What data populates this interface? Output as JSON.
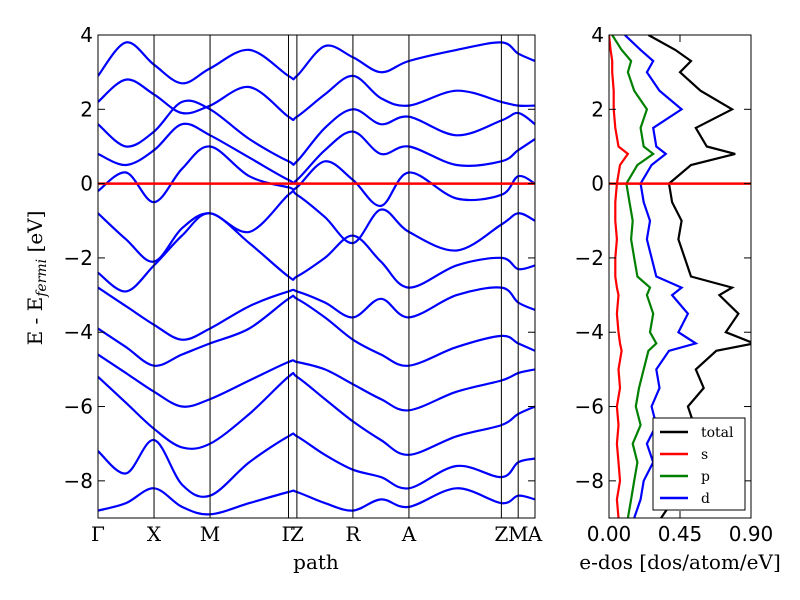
{
  "chart_data": [
    {
      "type": "line",
      "name": "band-structure",
      "xlabel": "path",
      "ylabel_prefix": "E - E",
      "ylabel_sub": "fermi",
      "ylabel_suffix": " [eV]",
      "ylim": [
        -9,
        4
      ],
      "yticks": [
        4,
        2,
        0,
        -2,
        -4,
        -6,
        -8
      ],
      "ytick_labels": [
        "4",
        "2",
        "0",
        "−2",
        "−4",
        "−6",
        "−8"
      ],
      "kpoints": [
        {
          "label": "Γ",
          "x": 0
        },
        {
          "label": "X",
          "x": 1.0
        },
        {
          "label": "M",
          "x": 2.0
        },
        {
          "label": "Γ",
          "x": 3.4
        },
        {
          "label": "Z",
          "x": 3.55
        },
        {
          "label": "R",
          "x": 4.55
        },
        {
          "label": "A",
          "x": 5.55
        },
        {
          "label": "Z",
          "x": 7.2
        },
        {
          "label": "M",
          "x": 7.5
        },
        {
          "label": "A",
          "x": 7.8
        }
      ],
      "xlim": [
        0,
        7.8
      ],
      "fermi_level": 0,
      "band_color": "#0000ff",
      "fermi_color": "#ff0000",
      "series": [
        {
          "name": "band-1",
          "x": [
            0,
            0.5,
            1.0,
            1.5,
            2.0,
            2.7,
            3.4,
            3.55,
            4.05,
            4.55,
            5.05,
            5.55,
            6.4,
            7.2,
            7.5,
            7.8
          ],
          "y": [
            -8.8,
            -8.6,
            -8.2,
            -8.7,
            -8.9,
            -8.6,
            -8.3,
            -8.3,
            -8.6,
            -8.8,
            -8.5,
            -8.7,
            -8.2,
            -8.6,
            -8.4,
            -8.5
          ]
        },
        {
          "name": "band-2",
          "x": [
            0,
            0.5,
            1.0,
            1.5,
            2.0,
            2.7,
            3.4,
            3.55,
            4.05,
            4.55,
            5.05,
            5.55,
            6.4,
            7.2,
            7.5,
            7.8
          ],
          "y": [
            -7.2,
            -7.8,
            -6.9,
            -8.1,
            -8.4,
            -7.5,
            -6.8,
            -6.8,
            -7.3,
            -7.7,
            -7.9,
            -8.2,
            -7.6,
            -7.9,
            -7.5,
            -7.4
          ]
        },
        {
          "name": "band-3",
          "x": [
            0,
            0.5,
            1.0,
            1.5,
            2.0,
            2.7,
            3.4,
            3.55,
            4.05,
            4.55,
            5.05,
            5.55,
            6.4,
            7.2,
            7.5,
            7.8
          ],
          "y": [
            -5.2,
            -5.9,
            -6.6,
            -7.1,
            -7.0,
            -6.2,
            -5.2,
            -5.2,
            -5.8,
            -6.4,
            -6.9,
            -7.3,
            -6.8,
            -6.5,
            -6.2,
            -6.0
          ]
        },
        {
          "name": "band-4",
          "x": [
            0,
            0.5,
            1.0,
            1.5,
            2.0,
            2.7,
            3.4,
            3.55,
            4.05,
            4.55,
            5.05,
            5.55,
            6.4,
            7.2,
            7.5,
            7.8
          ],
          "y": [
            -4.6,
            -5.1,
            -5.6,
            -6.0,
            -5.8,
            -5.3,
            -4.8,
            -4.8,
            -5.0,
            -5.4,
            -5.8,
            -6.1,
            -5.6,
            -5.3,
            -5.1,
            -5.0
          ]
        },
        {
          "name": "band-5",
          "x": [
            0,
            0.5,
            1.0,
            1.5,
            2.0,
            2.7,
            3.4,
            3.55,
            4.05,
            4.55,
            5.05,
            5.55,
            6.4,
            7.2,
            7.5,
            7.8
          ],
          "y": [
            -3.9,
            -4.4,
            -4.9,
            -4.6,
            -4.3,
            -3.9,
            -3.1,
            -3.1,
            -3.6,
            -4.2,
            -4.6,
            -4.9,
            -4.4,
            -4.1,
            -4.3,
            -4.5
          ]
        },
        {
          "name": "band-6",
          "x": [
            0,
            0.5,
            1.0,
            1.5,
            2.0,
            2.7,
            3.4,
            3.55,
            4.05,
            4.55,
            5.05,
            5.55,
            6.4,
            7.2,
            7.5,
            7.8
          ],
          "y": [
            -2.8,
            -3.3,
            -3.8,
            -4.2,
            -3.9,
            -3.3,
            -2.9,
            -2.9,
            -3.2,
            -3.6,
            -3.1,
            -3.6,
            -3.0,
            -2.8,
            -3.2,
            -3.4
          ]
        },
        {
          "name": "band-7",
          "x": [
            0,
            0.5,
            1.0,
            1.5,
            2.0,
            2.7,
            3.4,
            3.55,
            4.05,
            4.55,
            5.05,
            5.55,
            6.4,
            7.2,
            7.5,
            7.8
          ],
          "y": [
            -2.4,
            -2.9,
            -2.2,
            -1.4,
            -0.8,
            -1.6,
            -2.5,
            -2.5,
            -2.0,
            -1.4,
            -2.1,
            -2.8,
            -2.2,
            -2.0,
            -2.3,
            -2.2
          ]
        },
        {
          "name": "band-8",
          "x": [
            0,
            0.5,
            1.0,
            1.5,
            2.0,
            2.7,
            3.4,
            3.55,
            4.05,
            4.55,
            5.05,
            5.55,
            6.4,
            7.2,
            7.5,
            7.8
          ],
          "y": [
            -0.8,
            -1.5,
            -2.1,
            -1.2,
            -0.8,
            -1.3,
            -0.3,
            -0.3,
            -0.9,
            -1.6,
            -0.7,
            -1.3,
            -1.8,
            -1.1,
            -0.8,
            -1.0
          ]
        },
        {
          "name": "band-9",
          "x": [
            0,
            0.5,
            1.0,
            1.5,
            2.0,
            2.7,
            3.4,
            3.55,
            4.05,
            4.55,
            5.05,
            5.55,
            6.4,
            7.2,
            7.5,
            7.8
          ],
          "y": [
            -0.2,
            0.3,
            -0.5,
            0.4,
            1.0,
            0.2,
            -0.1,
            -0.1,
            0.6,
            0.1,
            -0.6,
            0.3,
            -0.4,
            -0.3,
            0.2,
            0.0
          ]
        },
        {
          "name": "band-10",
          "x": [
            0,
            0.5,
            1.0,
            1.5,
            2.0,
            2.7,
            3.4,
            3.55,
            4.05,
            4.55,
            5.05,
            5.55,
            6.4,
            7.2,
            7.5,
            7.8
          ],
          "y": [
            0.8,
            0.5,
            0.9,
            1.6,
            1.3,
            0.7,
            0.1,
            0.1,
            0.9,
            1.4,
            0.8,
            1.0,
            0.5,
            0.6,
            0.9,
            1.2
          ]
        },
        {
          "name": "band-11",
          "x": [
            0,
            0.5,
            1.0,
            1.5,
            2.0,
            2.7,
            3.4,
            3.55,
            4.05,
            4.55,
            5.05,
            5.55,
            6.4,
            7.2,
            7.5,
            7.8
          ],
          "y": [
            1.6,
            1.0,
            1.4,
            2.2,
            2.0,
            1.2,
            0.6,
            0.6,
            1.5,
            2.0,
            1.6,
            1.8,
            1.3,
            1.7,
            1.9,
            1.6
          ]
        },
        {
          "name": "band-12",
          "x": [
            0,
            0.5,
            1.0,
            1.5,
            2.0,
            2.7,
            3.4,
            3.55,
            4.05,
            4.55,
            5.05,
            5.55,
            6.4,
            7.2,
            7.5,
            7.8
          ],
          "y": [
            2.2,
            2.8,
            2.4,
            1.9,
            2.1,
            2.6,
            1.8,
            1.8,
            2.4,
            2.9,
            2.3,
            2.1,
            2.5,
            2.2,
            2.1,
            2.1
          ]
        },
        {
          "name": "band-13",
          "x": [
            0,
            0.5,
            1.0,
            1.5,
            2.0,
            2.7,
            3.4,
            3.55,
            4.05,
            4.55,
            5.05,
            5.55,
            6.4,
            7.2,
            7.5,
            7.8
          ],
          "y": [
            2.9,
            3.8,
            3.2,
            2.7,
            3.1,
            3.6,
            2.9,
            2.9,
            3.7,
            3.4,
            3.0,
            3.3,
            3.6,
            3.8,
            3.5,
            3.3
          ]
        }
      ]
    },
    {
      "type": "line",
      "name": "density-of-states",
      "xlabel": "e-dos [dos/atom/eV]",
      "xlim": [
        0.0,
        0.9
      ],
      "xticks": [
        0.0,
        0.45,
        0.9
      ],
      "xtick_labels": [
        "0.00",
        "0.45",
        "0.90"
      ],
      "ylim": [
        -9,
        4
      ],
      "yticks": [
        4,
        2,
        0,
        -2,
        -4,
        -6,
        -8
      ],
      "ytick_labels": [
        "4",
        "2",
        "0",
        "−2",
        "−4",
        "−6",
        "−8"
      ],
      "fermi_level": 0,
      "legend_position": "lower-right",
      "energy": [
        -9.0,
        -8.5,
        -8.0,
        -7.5,
        -7.0,
        -6.5,
        -6.0,
        -5.5,
        -5.0,
        -4.5,
        -4.3,
        -4.0,
        -3.5,
        -3.0,
        -2.8,
        -2.5,
        -2.0,
        -1.5,
        -1.0,
        -0.5,
        0.0,
        0.5,
        0.8,
        1.0,
        1.5,
        2.0,
        2.5,
        3.0,
        3.3,
        3.6,
        4.0
      ],
      "series": [
        {
          "name": "total",
          "color": "#000000",
          "values": [
            0.33,
            0.41,
            0.44,
            0.52,
            0.47,
            0.54,
            0.5,
            0.6,
            0.55,
            0.68,
            0.92,
            0.74,
            0.82,
            0.7,
            0.78,
            0.52,
            0.48,
            0.44,
            0.46,
            0.4,
            0.38,
            0.52,
            0.8,
            0.62,
            0.55,
            0.78,
            0.58,
            0.45,
            0.52,
            0.42,
            0.25
          ]
        },
        {
          "name": "s",
          "color": "#ff0000",
          "values": [
            0.06,
            0.05,
            0.07,
            0.06,
            0.05,
            0.06,
            0.05,
            0.07,
            0.06,
            0.08,
            0.07,
            0.06,
            0.05,
            0.06,
            0.05,
            0.04,
            0.04,
            0.05,
            0.04,
            0.04,
            0.05,
            0.07,
            0.12,
            0.06,
            0.04,
            0.03,
            0.03,
            0.02,
            0.02,
            0.01,
            0.0
          ]
        },
        {
          "name": "p",
          "color": "#008000",
          "values": [
            0.12,
            0.14,
            0.16,
            0.18,
            0.15,
            0.2,
            0.17,
            0.19,
            0.22,
            0.25,
            0.3,
            0.26,
            0.28,
            0.24,
            0.26,
            0.18,
            0.16,
            0.14,
            0.15,
            0.13,
            0.11,
            0.18,
            0.28,
            0.22,
            0.2,
            0.24,
            0.16,
            0.12,
            0.14,
            0.08,
            0.02
          ]
        },
        {
          "name": "d",
          "color": "#0000ff",
          "values": [
            0.16,
            0.2,
            0.22,
            0.28,
            0.24,
            0.3,
            0.27,
            0.32,
            0.3,
            0.38,
            0.55,
            0.44,
            0.5,
            0.4,
            0.46,
            0.3,
            0.27,
            0.24,
            0.26,
            0.22,
            0.2,
            0.27,
            0.36,
            0.3,
            0.28,
            0.46,
            0.32,
            0.24,
            0.28,
            0.2,
            0.1
          ]
        }
      ]
    }
  ]
}
